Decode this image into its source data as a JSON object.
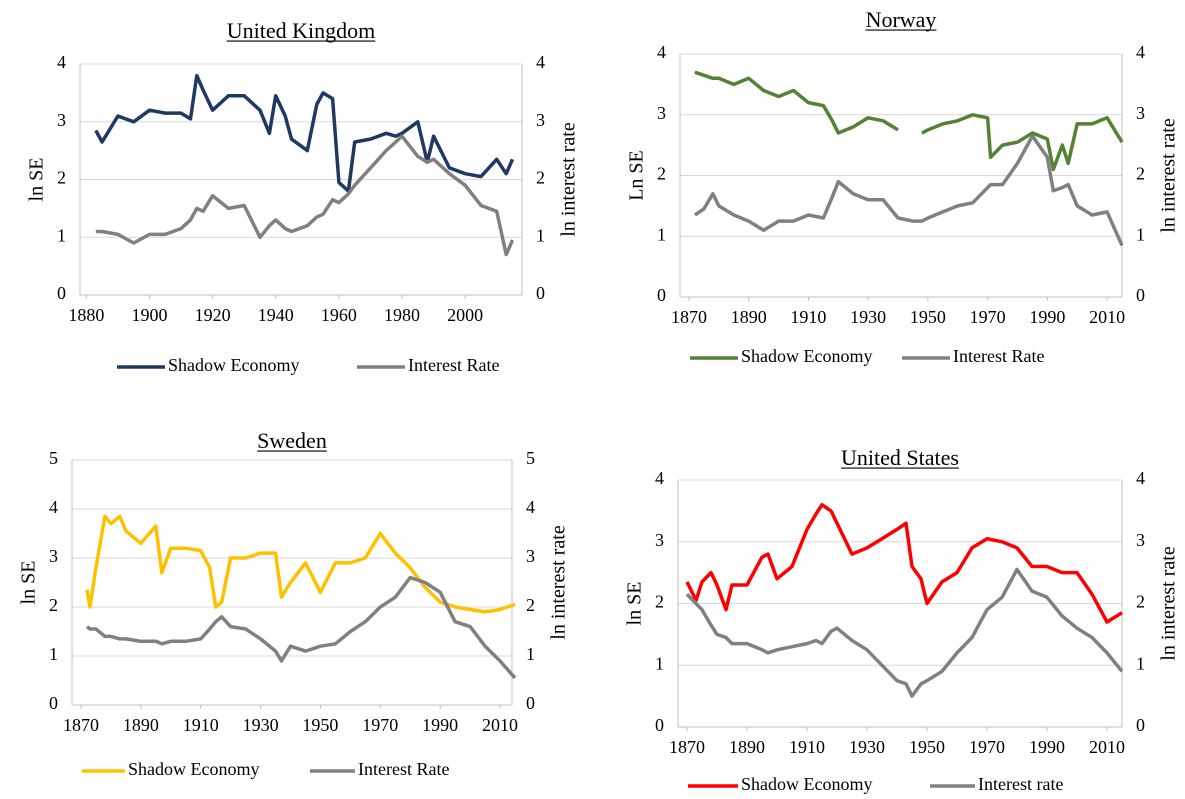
{
  "chart_data": [
    {
      "type": "line",
      "title": "United Kingdom",
      "ylabel": "ln SE",
      "y2label": "ln interest rate",
      "x": [
        1883,
        1885,
        1890,
        1895,
        1900,
        1905,
        1910,
        1913,
        1915,
        1917,
        1920,
        1925,
        1930,
        1935,
        1938,
        1940,
        1943,
        1945,
        1950,
        1953,
        1955,
        1958,
        1960,
        1963,
        1965,
        1970,
        1975,
        1978,
        1980,
        1985,
        1988,
        1990,
        1995,
        2000,
        2005,
        2010,
        2013,
        2015
      ],
      "xlim": [
        1878,
        2018
      ],
      "xticks": [
        1880,
        1900,
        1920,
        1940,
        1960,
        1980,
        2000
      ],
      "ylim": [
        0,
        4
      ],
      "yticks": [
        0,
        1,
        2,
        3,
        4
      ],
      "y2lim": [
        0,
        4
      ],
      "y2ticks": [
        0,
        1,
        2,
        3,
        4
      ],
      "grid": true,
      "series": [
        {
          "name": "Shadow Economy",
          "color": "#1f3864",
          "values": [
            2.85,
            2.65,
            3.1,
            3.0,
            3.2,
            3.15,
            3.15,
            3.05,
            3.8,
            3.55,
            3.2,
            3.45,
            3.45,
            3.2,
            2.8,
            3.45,
            3.1,
            2.7,
            2.5,
            3.3,
            3.5,
            3.4,
            1.95,
            1.8,
            2.65,
            2.7,
            2.8,
            2.75,
            2.8,
            3.0,
            2.3,
            2.75,
            2.2,
            2.1,
            2.05,
            2.35,
            2.1,
            2.35
          ]
        },
        {
          "name": "Interest Rate",
          "color": "#808080",
          "axis": "y2",
          "values": [
            1.1,
            1.1,
            1.05,
            0.9,
            1.05,
            1.05,
            1.15,
            1.3,
            1.5,
            1.45,
            1.72,
            1.5,
            1.55,
            1.0,
            1.2,
            1.3,
            1.15,
            1.1,
            1.2,
            1.35,
            1.4,
            1.65,
            1.6,
            1.75,
            1.9,
            2.2,
            2.5,
            2.65,
            2.75,
            2.4,
            2.3,
            2.35,
            2.1,
            1.9,
            1.55,
            1.45,
            0.7,
            0.95
          ]
        }
      ]
    },
    {
      "type": "line",
      "title": "Norway",
      "ylabel": "Ln SE",
      "y2label": "ln interest rate",
      "x": [
        1872,
        1875,
        1878,
        1880,
        1885,
        1890,
        1895,
        1900,
        1905,
        1910,
        1915,
        1918,
        1920,
        1925,
        1930,
        1935,
        1940,
        1945,
        1948,
        1950,
        1955,
        1960,
        1965,
        1970,
        1971,
        1975,
        1980,
        1985,
        1990,
        1992,
        1995,
        1997,
        2000,
        2005,
        2010,
        2015
      ],
      "xlim": [
        1867,
        2015
      ],
      "xticks": [
        1870,
        1890,
        1910,
        1930,
        1950,
        1970,
        1990,
        2010
      ],
      "ylim": [
        0,
        4
      ],
      "yticks": [
        0,
        1,
        2,
        3,
        4
      ],
      "y2lim": [
        0,
        4
      ],
      "y2ticks": [
        0,
        1,
        2,
        3,
        4
      ],
      "grid": true,
      "series": [
        {
          "name": "Shadow Economy",
          "color": "#548235",
          "values": [
            3.7,
            3.65,
            3.6,
            3.6,
            3.5,
            3.6,
            3.4,
            3.3,
            3.4,
            3.2,
            3.15,
            2.9,
            2.7,
            2.8,
            2.95,
            2.9,
            2.75,
            null,
            2.7,
            2.75,
            2.85,
            2.9,
            3.0,
            2.95,
            2.3,
            2.5,
            2.55,
            2.7,
            2.6,
            2.1,
            2.5,
            2.2,
            2.85,
            2.85,
            2.95,
            2.55
          ]
        },
        {
          "name": "Interest Rate",
          "color": "#808080",
          "axis": "y2",
          "values": [
            1.35,
            1.45,
            1.7,
            1.5,
            1.35,
            1.25,
            1.1,
            1.25,
            1.25,
            1.35,
            1.3,
            1.65,
            1.9,
            1.7,
            1.6,
            1.6,
            1.3,
            1.25,
            1.25,
            1.3,
            1.4,
            1.5,
            1.55,
            1.8,
            1.85,
            1.85,
            2.2,
            2.65,
            2.3,
            1.75,
            1.8,
            1.85,
            1.5,
            1.35,
            1.4,
            0.85
          ]
        }
      ]
    },
    {
      "type": "line",
      "title": "Sweden",
      "ylabel": "ln SE",
      "y2label": "ln interest rate",
      "x": [
        1872,
        1873,
        1875,
        1878,
        1880,
        1883,
        1885,
        1890,
        1895,
        1897,
        1900,
        1905,
        1910,
        1913,
        1915,
        1917,
        1920,
        1925,
        1930,
        1935,
        1937,
        1940,
        1945,
        1950,
        1955,
        1960,
        1965,
        1970,
        1975,
        1980,
        1985,
        1990,
        1995,
        2000,
        2005,
        2010,
        2015
      ],
      "xlim": [
        1867,
        2014
      ],
      "xticks": [
        1870,
        1890,
        1910,
        1930,
        1950,
        1970,
        1990,
        2010
      ],
      "ylim": [
        0,
        5
      ],
      "yticks": [
        0,
        1,
        2,
        3,
        4,
        5
      ],
      "y2lim": [
        0,
        5
      ],
      "y2ticks": [
        0,
        1,
        2,
        3,
        4,
        5
      ],
      "grid": true,
      "series": [
        {
          "name": "Shadow Economy",
          "color": "#ffc000",
          "values": [
            2.35,
            2.0,
            2.8,
            3.85,
            3.7,
            3.85,
            3.55,
            3.3,
            3.65,
            2.7,
            3.2,
            3.2,
            3.15,
            2.8,
            2.0,
            2.1,
            3.0,
            3.0,
            3.1,
            3.1,
            2.2,
            2.5,
            2.9,
            2.3,
            2.9,
            2.9,
            3.0,
            3.5,
            3.1,
            2.8,
            2.4,
            2.1,
            2.0,
            1.95,
            1.9,
            1.95,
            2.05
          ]
        },
        {
          "name": "Interest Rate",
          "color": "#808080",
          "axis": "y2",
          "values": [
            1.6,
            1.55,
            1.55,
            1.4,
            1.4,
            1.35,
            1.35,
            1.3,
            1.3,
            1.25,
            1.3,
            1.3,
            1.35,
            1.55,
            1.7,
            1.8,
            1.6,
            1.55,
            1.35,
            1.1,
            0.9,
            1.2,
            1.1,
            1.2,
            1.25,
            1.5,
            1.7,
            2.0,
            2.2,
            2.6,
            2.5,
            2.3,
            1.7,
            1.6,
            1.2,
            0.9,
            0.55
          ]
        }
      ]
    },
    {
      "type": "line",
      "title": "United States",
      "ylabel": "ln SE",
      "y2label": "ln interest rate",
      "x": [
        1870,
        1873,
        1875,
        1878,
        1880,
        1883,
        1885,
        1890,
        1895,
        1897,
        1900,
        1905,
        1910,
        1913,
        1915,
        1918,
        1920,
        1925,
        1930,
        1935,
        1940,
        1943,
        1945,
        1948,
        1950,
        1955,
        1960,
        1965,
        1970,
        1975,
        1980,
        1985,
        1990,
        1995,
        2000,
        2005,
        2010,
        2015
      ],
      "xlim": [
        1867,
        2015
      ],
      "xticks": [
        1870,
        1890,
        1910,
        1930,
        1950,
        1970,
        1990,
        2010
      ],
      "ylim": [
        0,
        4
      ],
      "yticks": [
        0,
        1,
        2,
        3,
        4
      ],
      "y2lim": [
        0,
        4
      ],
      "y2ticks": [
        0,
        1,
        2,
        3,
        4
      ],
      "grid": true,
      "series": [
        {
          "name": "Shadow Economy",
          "color": "#ff0000",
          "values": [
            2.35,
            2.05,
            2.35,
            2.5,
            2.3,
            1.9,
            2.3,
            2.3,
            2.75,
            2.8,
            2.4,
            2.6,
            3.2,
            3.45,
            3.6,
            3.5,
            3.3,
            2.8,
            2.9,
            3.05,
            3.2,
            3.3,
            2.6,
            2.4,
            2.0,
            2.35,
            2.5,
            2.9,
            3.05,
            3.0,
            2.9,
            2.6,
            2.6,
            2.5,
            2.5,
            2.15,
            1.7,
            1.85
          ]
        },
        {
          "name": "Interest rate",
          "color": "#808080",
          "axis": "y2",
          "values": [
            2.15,
            2.0,
            1.9,
            1.65,
            1.5,
            1.45,
            1.35,
            1.35,
            1.25,
            1.2,
            1.25,
            1.3,
            1.35,
            1.4,
            1.35,
            1.55,
            1.6,
            1.4,
            1.25,
            1.0,
            0.75,
            0.7,
            0.5,
            0.7,
            0.75,
            0.9,
            1.2,
            1.45,
            1.9,
            2.1,
            2.55,
            2.2,
            2.1,
            1.8,
            1.6,
            1.45,
            1.2,
            0.9
          ]
        }
      ]
    }
  ]
}
